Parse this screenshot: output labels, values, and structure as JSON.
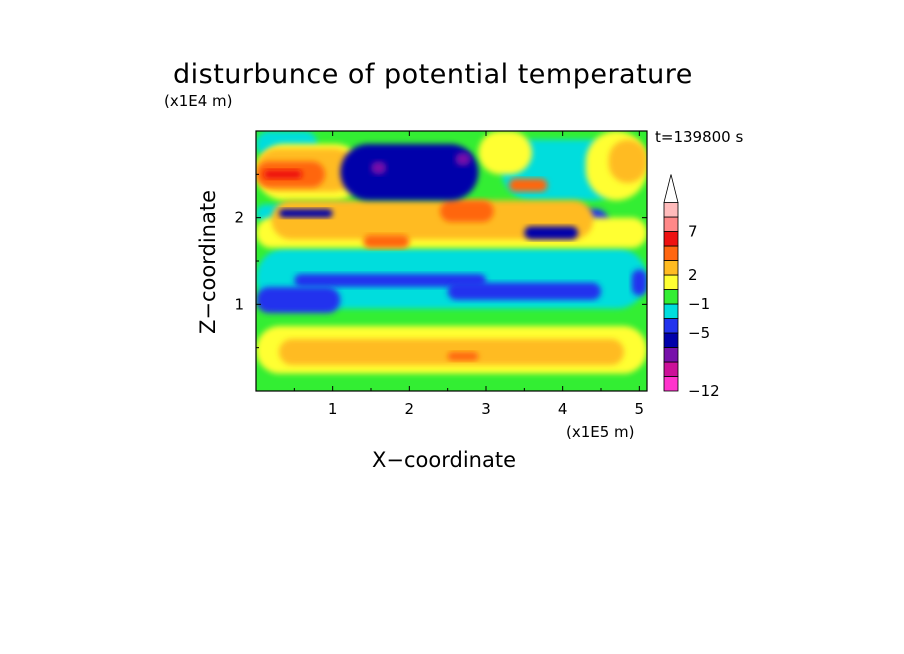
{
  "chart_data": {
    "type": "heatmap",
    "title": "disturbunce of potential temperature",
    "xlabel": "X−coordinate",
    "ylabel": "Z−coordinate",
    "x_unit_label": "(x1E5 m)",
    "y_unit_label": "(x1E4 m)",
    "time_label": "t=139800 s",
    "xlim": [
      0,
      5.1
    ],
    "ylim": [
      0,
      3.0
    ],
    "x_ticks": [
      1,
      2,
      3,
      4,
      5
    ],
    "y_ticks": [
      1,
      2
    ],
    "x_tick_labels": [
      "1",
      "2",
      "3",
      "4",
      "5"
    ],
    "y_tick_labels": [
      "1",
      "2"
    ],
    "colorbar": {
      "labels": [
        {
          "value": 7,
          "text": "7"
        },
        {
          "value": 2,
          "text": "2"
        },
        {
          "value": -1,
          "text": "−1"
        },
        {
          "value": -5,
          "text": "−5"
        },
        {
          "value": -12,
          "text": "−12"
        }
      ],
      "colors": [
        "#ff33cc",
        "#cc1199",
        "#7711aa",
        "#0000aa",
        "#2233ee",
        "#00dddd",
        "#33ee33",
        "#ffff33",
        "#ffbb22",
        "#ff6611",
        "#ee1111",
        "#ff8888",
        "#ffbbbb",
        "#ffffff"
      ]
    },
    "background_color": "#33ee33",
    "regions": [
      {
        "level": "cyan",
        "color": "#00dddd",
        "x": [
          0.0,
          5.1
        ],
        "z": [
          0.95,
          1.65
        ]
      },
      {
        "level": "cyan",
        "color": "#00dddd",
        "x": [
          0.0,
          1.3
        ],
        "z": [
          1.95,
          2.15
        ]
      },
      {
        "level": "cyan",
        "color": "#00dddd",
        "x": [
          3.2,
          4.8
        ],
        "z": [
          2.2,
          2.9
        ]
      },
      {
        "level": "cyan",
        "color": "#00dddd",
        "x": [
          0.0,
          0.8
        ],
        "z": [
          2.7,
          3.0
        ]
      },
      {
        "level": "blue",
        "color": "#2233ee",
        "x": [
          0.5,
          3.0
        ],
        "z": [
          1.2,
          1.35
        ]
      },
      {
        "level": "blue",
        "color": "#2233ee",
        "x": [
          2.5,
          4.5
        ],
        "z": [
          1.05,
          1.25
        ]
      },
      {
        "level": "blue",
        "color": "#2233ee",
        "x": [
          3.4,
          4.6
        ],
        "z": [
          1.8,
          2.1
        ]
      },
      {
        "level": "blue",
        "color": "#2233ee",
        "x": [
          0.0,
          1.1
        ],
        "z": [
          0.9,
          1.2
        ]
      },
      {
        "level": "blue",
        "color": "#2233ee",
        "x": [
          4.9,
          5.1
        ],
        "z": [
          1.1,
          1.4
        ]
      },
      {
        "level": "yellow",
        "color": "#ffff33",
        "x": [
          0.0,
          5.1
        ],
        "z": [
          0.2,
          0.75
        ]
      },
      {
        "level": "yellow",
        "color": "#ffff33",
        "x": [
          0.0,
          5.1
        ],
        "z": [
          1.65,
          2.0
        ]
      },
      {
        "level": "yellow",
        "color": "#ffff33",
        "x": [
          0.0,
          1.4
        ],
        "z": [
          2.2,
          2.85
        ]
      },
      {
        "level": "yellow",
        "color": "#ffff33",
        "x": [
          2.9,
          3.6
        ],
        "z": [
          2.5,
          3.0
        ]
      },
      {
        "level": "yellow",
        "color": "#ffff33",
        "x": [
          4.3,
          5.1
        ],
        "z": [
          2.2,
          3.0
        ]
      },
      {
        "level": "orange",
        "color": "#ffbb22",
        "x": [
          0.3,
          4.8
        ],
        "z": [
          0.3,
          0.6
        ]
      },
      {
        "level": "orange",
        "color": "#ffbb22",
        "x": [
          0.2,
          4.4
        ],
        "z": [
          1.75,
          2.2
        ]
      },
      {
        "level": "orange",
        "color": "#ffbb22",
        "x": [
          0.0,
          1.3
        ],
        "z": [
          2.3,
          2.8
        ]
      },
      {
        "level": "orange",
        "color": "#ffbb22",
        "x": [
          4.6,
          5.1
        ],
        "z": [
          2.4,
          2.9
        ]
      },
      {
        "level": "dark-orange",
        "color": "#ff6611",
        "x": [
          0.0,
          0.9
        ],
        "z": [
          2.35,
          2.65
        ]
      },
      {
        "level": "dark-orange",
        "color": "#ff6611",
        "x": [
          2.4,
          3.1
        ],
        "z": [
          1.95,
          2.2
        ]
      },
      {
        "level": "dark-orange",
        "color": "#ff6611",
        "x": [
          3.3,
          3.8
        ],
        "z": [
          2.3,
          2.45
        ]
      },
      {
        "level": "dark-orange",
        "color": "#ff6611",
        "x": [
          1.4,
          2.0
        ],
        "z": [
          1.65,
          1.8
        ]
      },
      {
        "level": "dark-orange",
        "color": "#ff6611",
        "x": [
          2.5,
          2.9
        ],
        "z": [
          0.35,
          0.45
        ]
      },
      {
        "level": "red",
        "color": "#ee1111",
        "x": [
          0.1,
          0.6
        ],
        "z": [
          2.45,
          2.55
        ]
      },
      {
        "level": "navy",
        "color": "#0000aa",
        "x": [
          1.1,
          2.9
        ],
        "z": [
          2.2,
          2.85
        ]
      },
      {
        "level": "navy",
        "color": "#0000aa",
        "x": [
          0.3,
          1.0
        ],
        "z": [
          2.0,
          2.1
        ]
      },
      {
        "level": "navy",
        "color": "#0000aa",
        "x": [
          3.5,
          4.2
        ],
        "z": [
          1.75,
          1.9
        ]
      },
      {
        "level": "purple",
        "color": "#7711aa",
        "x": [
          1.5,
          1.7
        ],
        "z": [
          2.5,
          2.65
        ]
      },
      {
        "level": "purple",
        "color": "#7711aa",
        "x": [
          2.6,
          2.8
        ],
        "z": [
          2.6,
          2.75
        ]
      }
    ]
  }
}
